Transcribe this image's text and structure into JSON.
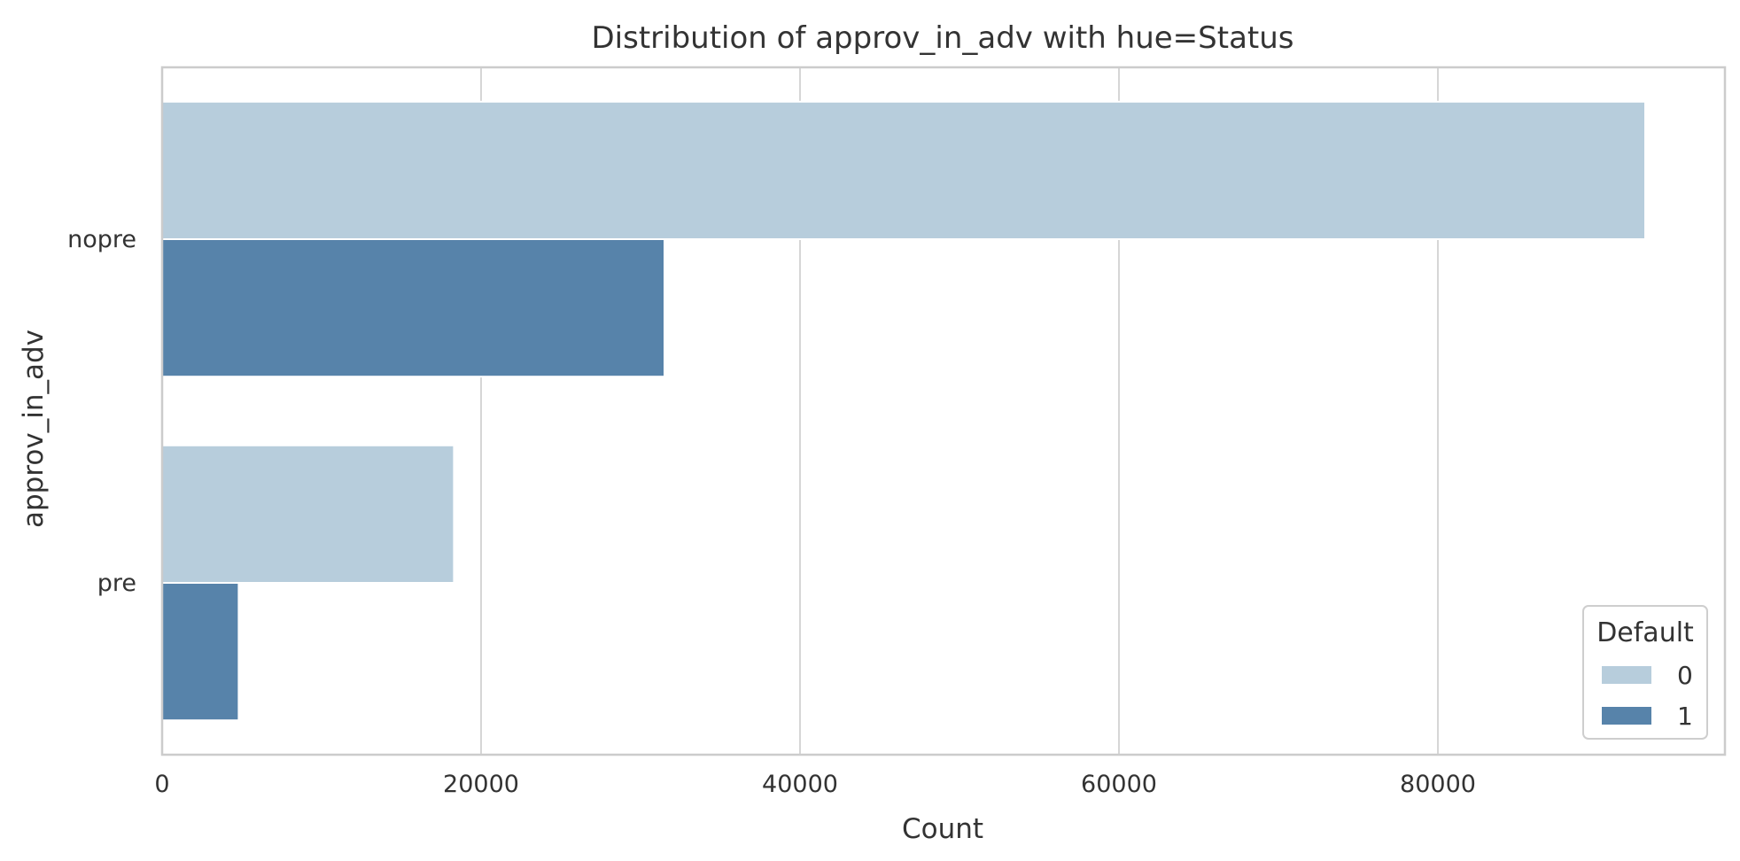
{
  "chart_data": {
    "type": "bar",
    "orientation": "horizontal",
    "title": "Distribution of approv_in_adv with hue=Status",
    "xlabel": "Count",
    "ylabel": "approv_in_adv",
    "categories": [
      "nopre",
      "pre"
    ],
    "series": [
      {
        "name": "0",
        "values": [
          93000,
          18300
        ],
        "color": "#b7cddc"
      },
      {
        "name": "1",
        "values": [
          31500,
          4800
        ],
        "color": "#5783aa"
      }
    ],
    "xlim": [
      0,
      98000
    ],
    "xticks": [
      0,
      20000,
      40000,
      60000,
      80000
    ],
    "xtick_labels": [
      "0",
      "20000",
      "40000",
      "60000",
      "80000"
    ],
    "grid": "vertical",
    "legend": {
      "title": "Default",
      "placement": "lower-right"
    }
  }
}
